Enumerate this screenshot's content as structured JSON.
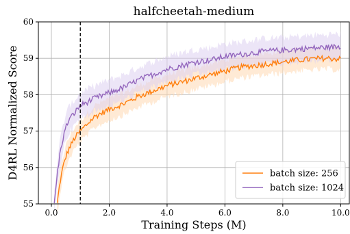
{
  "chart_data": {
    "type": "line",
    "title": "halfcheetah-medium",
    "xlabel": "Training Steps (M)",
    "ylabel": "D4RL Normalized Score",
    "xlim": [
      -0.45,
      10.3
    ],
    "ylim": [
      55,
      60
    ],
    "xticks": [
      0,
      2,
      4,
      6,
      8,
      10
    ],
    "xtick_labels": [
      "0.0",
      "2.0",
      "4.0",
      "6.0",
      "8.0",
      "10.0"
    ],
    "yticks": [
      55,
      56,
      57,
      58,
      59,
      60
    ],
    "ytick_labels": [
      "55",
      "56",
      "57",
      "58",
      "59",
      "60"
    ],
    "grid": true,
    "legend_position": "bottom-right",
    "vline": {
      "x": 1.0,
      "style": "dashed",
      "color": "#000000"
    },
    "series": [
      {
        "name": "batch size: 256",
        "color": "#ff7f0e",
        "band_color": "#ffd9b3",
        "x": [
          0.2,
          0.3,
          0.4,
          0.5,
          0.6,
          0.8,
          1.0,
          1.5,
          2.0,
          2.5,
          3.0,
          3.5,
          4.0,
          4.5,
          5.0,
          5.5,
          6.0,
          6.5,
          7.0,
          7.5,
          8.0,
          8.5,
          9.0,
          9.5,
          10.0
        ],
        "y": [
          55.0,
          55.6,
          56.0,
          56.3,
          56.5,
          56.8,
          57.0,
          57.4,
          57.6,
          57.75,
          57.95,
          58.1,
          58.25,
          58.35,
          58.45,
          58.55,
          58.65,
          58.75,
          58.8,
          58.85,
          58.9,
          58.95,
          58.98,
          59.0,
          58.98
        ],
        "band": 0.3
      },
      {
        "name": "batch size: 1024",
        "color": "#9467bd",
        "band_color": "#dcd0f0",
        "x": [
          0.1,
          0.2,
          0.3,
          0.4,
          0.5,
          0.6,
          0.8,
          1.0,
          1.5,
          2.0,
          2.5,
          3.0,
          3.5,
          4.0,
          4.5,
          5.0,
          5.5,
          6.0,
          6.5,
          7.0,
          7.5,
          8.0,
          8.5,
          9.0,
          9.5,
          10.0
        ],
        "y": [
          55.0,
          55.8,
          56.4,
          56.8,
          57.1,
          57.3,
          57.5,
          57.7,
          57.9,
          58.05,
          58.2,
          58.4,
          58.55,
          58.7,
          58.8,
          58.9,
          58.95,
          59.05,
          59.1,
          59.15,
          59.2,
          59.22,
          59.25,
          59.28,
          59.3,
          59.32
        ],
        "band": 0.35
      }
    ]
  }
}
